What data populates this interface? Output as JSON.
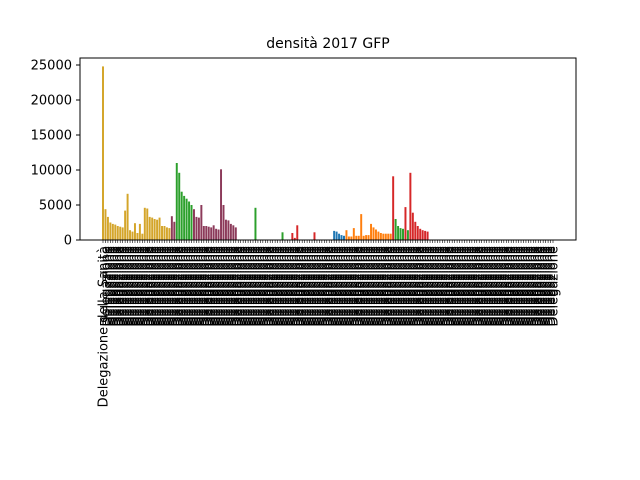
{
  "chart_data": {
    "type": "bar",
    "title": "densità  2017  GFP",
    "xlabel": "",
    "ylabel": "",
    "ylim": [
      0,
      26000
    ],
    "yticks": [
      0,
      5000,
      10000,
      15000,
      20000,
      25000
    ],
    "ytick_labels": [
      "0",
      "5000",
      "10000",
      "15000",
      "20000",
      "25000"
    ],
    "grid": false,
    "legend": "none",
    "group_colors": [
      "#d4a52a",
      "#8c3a5a",
      "#2ca02c",
      "#d62728",
      "#1f77b4",
      "#ff7f0e",
      "#2ca02c",
      "#d62728"
    ],
    "bars": [
      {
        "label": "Delegazione della Sanità",
        "value": 24800,
        "group": 0
      },
      {
        "label": "Delegazione",
        "value": 4400,
        "group": 0
      },
      {
        "label": "Delegazione",
        "value": 3300,
        "group": 0
      },
      {
        "label": "Delegazione",
        "value": 2500,
        "group": 0
      },
      {
        "label": "Delegazione",
        "value": 2300,
        "group": 0
      },
      {
        "label": "Delegazione",
        "value": 2200,
        "group": 0
      },
      {
        "label": "Delegazione",
        "value": 2000,
        "group": 0
      },
      {
        "label": "Delegazione",
        "value": 1900,
        "group": 0
      },
      {
        "label": "Delegazione",
        "value": 1800,
        "group": 0
      },
      {
        "label": "Delegazione",
        "value": 4200,
        "group": 0
      },
      {
        "label": "Delegazione",
        "value": 6600,
        "group": 0
      },
      {
        "label": "Delegazione",
        "value": 1400,
        "group": 0
      },
      {
        "label": "Delegazione",
        "value": 1200,
        "group": 0
      },
      {
        "label": "Delegazione",
        "value": 2400,
        "group": 0
      },
      {
        "label": "Delegazione",
        "value": 1000,
        "group": 0
      },
      {
        "label": "Delegazione",
        "value": 2300,
        "group": 0
      },
      {
        "label": "Delegazione",
        "value": 900,
        "group": 0
      },
      {
        "label": "Delegazione",
        "value": 4600,
        "group": 0
      },
      {
        "label": "Delegazione",
        "value": 4500,
        "group": 0
      },
      {
        "label": "Delegazione",
        "value": 3300,
        "group": 0
      },
      {
        "label": "Delegazione",
        "value": 3200,
        "group": 0
      },
      {
        "label": "Delegazione",
        "value": 3000,
        "group": 0
      },
      {
        "label": "Delegazione",
        "value": 2900,
        "group": 0
      },
      {
        "label": "Delegazione",
        "value": 3200,
        "group": 0
      },
      {
        "label": "Delegazione",
        "value": 2000,
        "group": 0
      },
      {
        "label": "Delegazione",
        "value": 2000,
        "group": 0
      },
      {
        "label": "Delegazione",
        "value": 1800,
        "group": 0
      },
      {
        "label": "Delegazione",
        "value": 1700,
        "group": 0
      },
      {
        "label": "Delegazione",
        "value": 3400,
        "group": 1
      },
      {
        "label": "Delegazione",
        "value": 2600,
        "group": 1
      },
      {
        "label": "Delegazione",
        "value": 11000,
        "group": 2
      },
      {
        "label": "Delegazione",
        "value": 9600,
        "group": 2
      },
      {
        "label": "Delegazione",
        "value": 6900,
        "group": 2
      },
      {
        "label": "Delegazione",
        "value": 6300,
        "group": 2
      },
      {
        "label": "Delegazione",
        "value": 5900,
        "group": 2
      },
      {
        "label": "Delegazione",
        "value": 5500,
        "group": 2
      },
      {
        "label": "Delegazione",
        "value": 5000,
        "group": 2
      },
      {
        "label": "Delegazione",
        "value": 4400,
        "group": 1
      },
      {
        "label": "Delegazione",
        "value": 3300,
        "group": 1
      },
      {
        "label": "Delegazione",
        "value": 3200,
        "group": 1
      },
      {
        "label": "Delegazione",
        "value": 5000,
        "group": 1
      },
      {
        "label": "Delegazione",
        "value": 2000,
        "group": 1
      },
      {
        "label": "Delegazione",
        "value": 2000,
        "group": 1
      },
      {
        "label": "Delegazione",
        "value": 1900,
        "group": 1
      },
      {
        "label": "Delegazione",
        "value": 1800,
        "group": 1
      },
      {
        "label": "Delegazione",
        "value": 2100,
        "group": 1
      },
      {
        "label": "Delegazione",
        "value": 1600,
        "group": 1
      },
      {
        "label": "Delegazione",
        "value": 1500,
        "group": 1
      },
      {
        "label": "Delegazione",
        "value": 10100,
        "group": 1
      },
      {
        "label": "Delegazione",
        "value": 5000,
        "group": 1
      },
      {
        "label": "Delegazione",
        "value": 2900,
        "group": 1
      },
      {
        "label": "Delegazione",
        "value": 2800,
        "group": 1
      },
      {
        "label": "Delegazione",
        "value": 2300,
        "group": 1
      },
      {
        "label": "Delegazione",
        "value": 2100,
        "group": 1
      },
      {
        "label": "Delegazione",
        "value": 1800,
        "group": 1
      },
      {
        "label": "Delegazione",
        "value": 0,
        "group": 2
      },
      {
        "label": "Delegazione",
        "value": 0,
        "group": 2
      },
      {
        "label": "Delegazione",
        "value": 0,
        "group": 2
      },
      {
        "label": "Delegazione",
        "value": 0,
        "group": 2
      },
      {
        "label": "Delegazione",
        "value": 0,
        "group": 2
      },
      {
        "label": "Delegazione",
        "value": 0,
        "group": 2
      },
      {
        "label": "Delegazione",
        "value": 0,
        "group": 2
      },
      {
        "label": "Delegazione",
        "value": 4600,
        "group": 2
      },
      {
        "label": "Delegazione",
        "value": 0,
        "group": 2
      },
      {
        "label": "Delegazione",
        "value": 0,
        "group": 2
      },
      {
        "label": "Delegazione",
        "value": 0,
        "group": 2
      },
      {
        "label": "Delegazione",
        "value": 0,
        "group": 2
      },
      {
        "label": "Delegazione",
        "value": 0,
        "group": 2
      },
      {
        "label": "Delegazione",
        "value": 0,
        "group": 2
      },
      {
        "label": "Delegazione",
        "value": 0,
        "group": 2
      },
      {
        "label": "Delegazione",
        "value": 0,
        "group": 2
      },
      {
        "label": "Delegazione",
        "value": 0,
        "group": 2
      },
      {
        "label": "Delegazione",
        "value": 0,
        "group": 2
      },
      {
        "label": "Delegazione",
        "value": 1100,
        "group": 2
      },
      {
        "label": "Delegazione",
        "value": 0,
        "group": 2
      },
      {
        "label": "Delegazione",
        "value": 0,
        "group": 2
      },
      {
        "label": "Delegazione",
        "value": 0,
        "group": 2
      },
      {
        "label": "Delegazione",
        "value": 1000,
        "group": 3
      },
      {
        "label": "Delegazione",
        "value": 300,
        "group": 3
      },
      {
        "label": "Delegazione",
        "value": 2100,
        "group": 3
      },
      {
        "label": "Delegazione",
        "value": 0,
        "group": 3
      },
      {
        "label": "Delegazione",
        "value": 0,
        "group": 3
      },
      {
        "label": "Delegazione",
        "value": 0,
        "group": 3
      },
      {
        "label": "Delegazione",
        "value": 0,
        "group": 3
      },
      {
        "label": "Delegazione",
        "value": 0,
        "group": 3
      },
      {
        "label": "Delegazione",
        "value": 0,
        "group": 3
      },
      {
        "label": "Delegazione",
        "value": 1100,
        "group": 3
      },
      {
        "label": "Delegazione",
        "value": 0,
        "group": 3
      },
      {
        "label": "Delegazione",
        "value": 0,
        "group": 3
      },
      {
        "label": "Delegazione",
        "value": 0,
        "group": 3
      },
      {
        "label": "Delegazione",
        "value": 0,
        "group": 3
      },
      {
        "label": "Delegazione",
        "value": 0,
        "group": 3
      },
      {
        "label": "Delegazione",
        "value": 0,
        "group": 3
      },
      {
        "label": "Delegazione",
        "value": 0,
        "group": 3
      },
      {
        "label": "Delegazione",
        "value": 1300,
        "group": 4
      },
      {
        "label": "Delegazione",
        "value": 1200,
        "group": 4
      },
      {
        "label": "Delegazione",
        "value": 900,
        "group": 4
      },
      {
        "label": "Delegazione",
        "value": 700,
        "group": 4
      },
      {
        "label": "Delegazione",
        "value": 600,
        "group": 4
      },
      {
        "label": "Delegazione",
        "value": 1400,
        "group": 5
      },
      {
        "label": "Delegazione",
        "value": 500,
        "group": 5
      },
      {
        "label": "Delegazione",
        "value": 500,
        "group": 5
      },
      {
        "label": "Delegazione",
        "value": 1700,
        "group": 5
      },
      {
        "label": "Delegazione",
        "value": 600,
        "group": 5
      },
      {
        "label": "Delegazione",
        "value": 600,
        "group": 5
      },
      {
        "label": "Delegazione",
        "value": 3700,
        "group": 5
      },
      {
        "label": "Delegazione",
        "value": 600,
        "group": 5
      },
      {
        "label": "Delegazione",
        "value": 700,
        "group": 5
      },
      {
        "label": "Delegazione",
        "value": 700,
        "group": 5
      },
      {
        "label": "Delegazione",
        "value": 2300,
        "group": 5
      },
      {
        "label": "Delegazione",
        "value": 1800,
        "group": 5
      },
      {
        "label": "Delegazione",
        "value": 1500,
        "group": 5
      },
      {
        "label": "Delegazione",
        "value": 1200,
        "group": 5
      },
      {
        "label": "Delegazione",
        "value": 1000,
        "group": 5
      },
      {
        "label": "Delegazione",
        "value": 900,
        "group": 5
      },
      {
        "label": "Delegazione",
        "value": 900,
        "group": 5
      },
      {
        "label": "Delegazione",
        "value": 900,
        "group": 5
      },
      {
        "label": "Delegazione",
        "value": 900,
        "group": 5
      },
      {
        "label": "Delegazione",
        "value": 9100,
        "group": 7
      },
      {
        "label": "Delegazione",
        "value": 3000,
        "group": 6
      },
      {
        "label": "Delegazione",
        "value": 2000,
        "group": 6
      },
      {
        "label": "Delegazione",
        "value": 1700,
        "group": 6
      },
      {
        "label": "Delegazione",
        "value": 1600,
        "group": 6
      },
      {
        "label": "Delegazione",
        "value": 4700,
        "group": 7
      },
      {
        "label": "Delegazione",
        "value": 1400,
        "group": 6
      },
      {
        "label": "Delegazione",
        "value": 9600,
        "group": 7
      },
      {
        "label": "Delegazione",
        "value": 3900,
        "group": 7
      },
      {
        "label": "Delegazione",
        "value": 2600,
        "group": 7
      },
      {
        "label": "Delegazione",
        "value": 2000,
        "group": 7
      },
      {
        "label": "Delegazione",
        "value": 1600,
        "group": 7
      },
      {
        "label": "Delegazione",
        "value": 1400,
        "group": 7
      },
      {
        "label": "Delegazione",
        "value": 1300,
        "group": 7
      },
      {
        "label": "Delegazione",
        "value": 1200,
        "group": 7
      },
      {
        "label": "Delegazione",
        "value": 0,
        "group": 7
      },
      {
        "label": "Delegazione",
        "value": 0,
        "group": 7
      },
      {
        "label": "Delegazione",
        "value": 0,
        "group": 7
      },
      {
        "label": "Delegazione",
        "value": 0,
        "group": 7
      },
      {
        "label": "Delegazione",
        "value": 0,
        "group": 7
      },
      {
        "label": "Delegazione",
        "value": 0,
        "group": 7
      },
      {
        "label": "Delegazione",
        "value": 0,
        "group": 7
      },
      {
        "label": "Delegazione",
        "value": 0,
        "group": 7
      },
      {
        "label": "Delegazione",
        "value": 0,
        "group": 7
      },
      {
        "label": "Delegazione",
        "value": 0,
        "group": 7
      },
      {
        "label": "Delegazione",
        "value": 0,
        "group": 7
      },
      {
        "label": "Delegazione",
        "value": 0,
        "group": 7
      },
      {
        "label": "Delegazione",
        "value": 0,
        "group": 7
      },
      {
        "label": "Delegazione",
        "value": 0,
        "group": 7
      },
      {
        "label": "Delegazione",
        "value": 0,
        "group": 7
      },
      {
        "label": "Delegazione",
        "value": 0,
        "group": 7
      },
      {
        "label": "Delegazione",
        "value": 0,
        "group": 7
      },
      {
        "label": "Delegazione",
        "value": 0,
        "group": 7
      },
      {
        "label": "Delegazione",
        "value": 0,
        "group": 7
      },
      {
        "label": "Delegazione",
        "value": 0,
        "group": 7
      },
      {
        "label": "Delegazione",
        "value": 0,
        "group": 7
      },
      {
        "label": "Delegazione",
        "value": 0,
        "group": 7
      },
      {
        "label": "Delegazione",
        "value": 0,
        "group": 7
      },
      {
        "label": "Delegazione",
        "value": 0,
        "group": 7
      },
      {
        "label": "Delegazione",
        "value": 0,
        "group": 7
      },
      {
        "label": "Delegazione",
        "value": 0,
        "group": 7
      },
      {
        "label": "Delegazione",
        "value": 0,
        "group": 7
      },
      {
        "label": "Delegazione",
        "value": 0,
        "group": 7
      },
      {
        "label": "Delegazione",
        "value": 0,
        "group": 7
      },
      {
        "label": "Delegazione",
        "value": 0,
        "group": 7
      },
      {
        "label": "Delegazione",
        "value": 0,
        "group": 7
      },
      {
        "label": "Delegazione",
        "value": 0,
        "group": 7
      },
      {
        "label": "Delegazione",
        "value": 0,
        "group": 7
      },
      {
        "label": "Delegazione",
        "value": 0,
        "group": 7
      },
      {
        "label": "Delegazione",
        "value": 0,
        "group": 7
      },
      {
        "label": "Delegazione",
        "value": 0,
        "group": 7
      },
      {
        "label": "Delegazione",
        "value": 0,
        "group": 7
      },
      {
        "label": "Delegazione",
        "value": 0,
        "group": 7
      },
      {
        "label": "Delegazione",
        "value": 0,
        "group": 7
      },
      {
        "label": "Delegazione",
        "value": 0,
        "group": 7
      },
      {
        "label": "Delegazione",
        "value": 0,
        "group": 7
      },
      {
        "label": "Delegazione",
        "value": 0,
        "group": 7
      },
      {
        "label": "Delegazione",
        "value": 0,
        "group": 7
      },
      {
        "label": "Delegazione",
        "value": 0,
        "group": 7
      },
      {
        "label": "Delegazione",
        "value": 0,
        "group": 7
      },
      {
        "label": "Delegazione",
        "value": 0,
        "group": 7
      },
      {
        "label": "Delegazione",
        "value": 0,
        "group": 7
      },
      {
        "label": "Delegazione",
        "value": 0,
        "group": 7
      },
      {
        "label": "Delegazione",
        "value": 0,
        "group": 7
      },
      {
        "label": "Delegazione",
        "value": 0,
        "group": 7
      },
      {
        "label": "Delegazione",
        "value": 0,
        "group": 7
      }
    ]
  }
}
